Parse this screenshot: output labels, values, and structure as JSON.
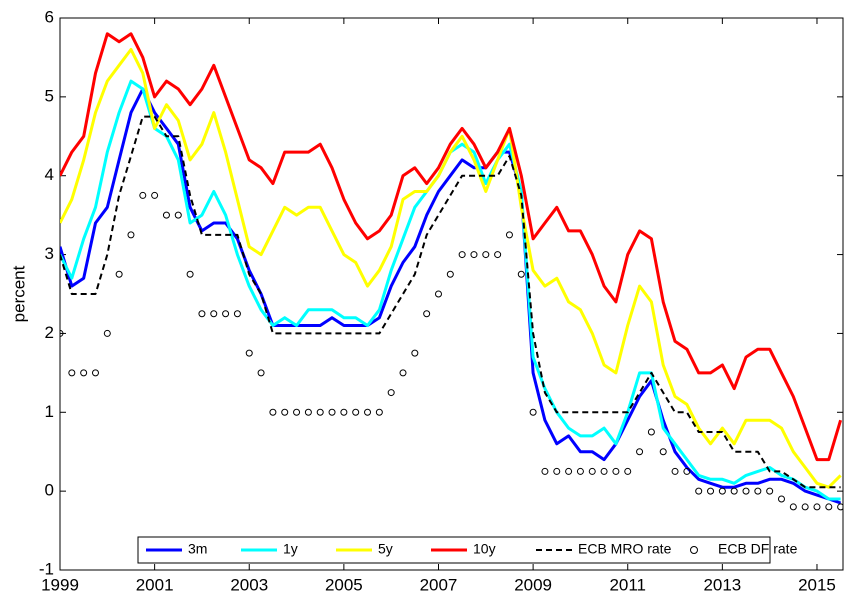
{
  "chart_data": {
    "type": "line",
    "ylabel": "percent",
    "x": [
      1999,
      1999.25,
      1999.5,
      1999.75,
      2000,
      2000.25,
      2000.5,
      2000.75,
      2001,
      2001.25,
      2001.5,
      2001.75,
      2002,
      2002.25,
      2002.5,
      2002.75,
      2003,
      2003.25,
      2003.5,
      2003.75,
      2004,
      2004.25,
      2004.5,
      2004.75,
      2005,
      2005.25,
      2005.5,
      2005.75,
      2006,
      2006.25,
      2006.5,
      2006.75,
      2007,
      2007.25,
      2007.5,
      2007.75,
      2008,
      2008.25,
      2008.5,
      2008.75,
      2009,
      2009.25,
      2009.5,
      2009.75,
      2010,
      2010.25,
      2010.5,
      2010.75,
      2011,
      2011.25,
      2011.5,
      2011.75,
      2012,
      2012.25,
      2012.5,
      2012.75,
      2013,
      2013.25,
      2013.5,
      2013.75,
      2014,
      2014.25,
      2014.5,
      2014.75,
      2015,
      2015.25,
      2015.5
    ],
    "series": [
      {
        "name": "3m",
        "color": "#0000ff",
        "line_style": "solid",
        "values": [
          3.1,
          2.6,
          2.7,
          3.4,
          3.6,
          4.2,
          4.8,
          5.1,
          4.8,
          4.6,
          4.4,
          3.6,
          3.3,
          3.4,
          3.4,
          3.2,
          2.8,
          2.5,
          2.1,
          2.1,
          2.1,
          2.1,
          2.1,
          2.2,
          2.1,
          2.1,
          2.1,
          2.2,
          2.6,
          2.9,
          3.1,
          3.5,
          3.8,
          4.0,
          4.2,
          4.1,
          4.1,
          4.3,
          4.3,
          3.8,
          1.5,
          0.9,
          0.6,
          0.7,
          0.5,
          0.5,
          0.4,
          0.6,
          0.9,
          1.2,
          1.4,
          0.9,
          0.5,
          0.3,
          0.15,
          0.1,
          0.05,
          0.05,
          0.1,
          0.1,
          0.15,
          0.15,
          0.1,
          0.0,
          -0.05,
          -0.1,
          -0.15
        ]
      },
      {
        "name": "1y",
        "color": "#00ffff",
        "line_style": "solid",
        "values": [
          3.0,
          2.7,
          3.2,
          3.6,
          4.3,
          4.8,
          5.2,
          5.1,
          4.6,
          4.5,
          4.2,
          3.4,
          3.5,
          3.8,
          3.5,
          3.0,
          2.6,
          2.3,
          2.1,
          2.2,
          2.1,
          2.3,
          2.3,
          2.3,
          2.2,
          2.2,
          2.1,
          2.3,
          2.8,
          3.2,
          3.6,
          3.8,
          4.0,
          4.3,
          4.4,
          4.3,
          3.9,
          4.2,
          4.4,
          3.8,
          1.7,
          1.3,
          1.0,
          0.8,
          0.7,
          0.7,
          0.8,
          0.6,
          1.0,
          1.5,
          1.5,
          0.8,
          0.6,
          0.4,
          0.2,
          0.15,
          0.15,
          0.1,
          0.2,
          0.25,
          0.3,
          0.2,
          0.15,
          0.05,
          0.0,
          -0.1,
          -0.1
        ]
      },
      {
        "name": "5y",
        "color": "#ffff00",
        "line_style": "solid",
        "values": [
          3.4,
          3.7,
          4.2,
          4.8,
          5.2,
          5.4,
          5.6,
          5.3,
          4.6,
          4.9,
          4.7,
          4.2,
          4.4,
          4.8,
          4.3,
          3.7,
          3.1,
          3.0,
          3.3,
          3.6,
          3.5,
          3.6,
          3.6,
          3.3,
          3.0,
          2.9,
          2.6,
          2.8,
          3.1,
          3.7,
          3.8,
          3.8,
          4.0,
          4.3,
          4.5,
          4.2,
          3.8,
          4.2,
          4.6,
          3.6,
          2.8,
          2.6,
          2.7,
          2.4,
          2.3,
          2.0,
          1.6,
          1.5,
          2.1,
          2.6,
          2.4,
          1.6,
          1.2,
          1.1,
          0.8,
          0.6,
          0.8,
          0.6,
          0.9,
          0.9,
          0.9,
          0.8,
          0.5,
          0.3,
          0.1,
          0.05,
          0.2
        ]
      },
      {
        "name": "10y",
        "color": "#ff0000",
        "line_style": "solid",
        "values": [
          4.0,
          4.3,
          4.5,
          5.3,
          5.8,
          5.7,
          5.8,
          5.5,
          5.0,
          5.2,
          5.1,
          4.9,
          5.1,
          5.4,
          5.0,
          4.6,
          4.2,
          4.1,
          3.9,
          4.3,
          4.3,
          4.3,
          4.4,
          4.1,
          3.7,
          3.4,
          3.2,
          3.3,
          3.5,
          4.0,
          4.1,
          3.9,
          4.1,
          4.4,
          4.6,
          4.4,
          4.1,
          4.3,
          4.6,
          4.0,
          3.2,
          3.4,
          3.6,
          3.3,
          3.3,
          3.0,
          2.6,
          2.4,
          3.0,
          3.3,
          3.2,
          2.4,
          1.9,
          1.8,
          1.5,
          1.5,
          1.6,
          1.3,
          1.7,
          1.8,
          1.8,
          1.5,
          1.2,
          0.8,
          0.4,
          0.4,
          0.9
        ]
      },
      {
        "name": "ECB MRO rate",
        "color": "#000000",
        "line_style": "dashed",
        "values": [
          3.0,
          2.5,
          2.5,
          2.5,
          3.0,
          3.75,
          4.25,
          4.75,
          4.75,
          4.5,
          4.5,
          3.75,
          3.25,
          3.25,
          3.25,
          3.25,
          2.75,
          2.5,
          2.0,
          2.0,
          2.0,
          2.0,
          2.0,
          2.0,
          2.0,
          2.0,
          2.0,
          2.0,
          2.25,
          2.5,
          2.75,
          3.25,
          3.5,
          3.75,
          4.0,
          4.0,
          4.0,
          4.0,
          4.25,
          3.75,
          2.0,
          1.25,
          1.0,
          1.0,
          1.0,
          1.0,
          1.0,
          1.0,
          1.0,
          1.25,
          1.5,
          1.25,
          1.0,
          1.0,
          0.75,
          0.75,
          0.75,
          0.5,
          0.5,
          0.5,
          0.25,
          0.25,
          0.15,
          0.05,
          0.05,
          0.05,
          0.05
        ]
      },
      {
        "name": "ECB DF rate",
        "color": "#000000",
        "line_style": "markers",
        "values": [
          2.0,
          1.5,
          1.5,
          1.5,
          2.0,
          2.75,
          3.25,
          3.75,
          3.75,
          3.5,
          3.5,
          2.75,
          2.25,
          2.25,
          2.25,
          2.25,
          1.75,
          1.5,
          1.0,
          1.0,
          1.0,
          1.0,
          1.0,
          1.0,
          1.0,
          1.0,
          1.0,
          1.0,
          1.25,
          1.5,
          1.75,
          2.25,
          2.5,
          2.75,
          3.0,
          3.0,
          3.0,
          3.0,
          3.25,
          2.75,
          1.0,
          0.25,
          0.25,
          0.25,
          0.25,
          0.25,
          0.25,
          0.25,
          0.25,
          0.5,
          0.75,
          0.5,
          0.25,
          0.25,
          0.0,
          0.0,
          0.0,
          0.0,
          0.0,
          0.0,
          0.0,
          -0.1,
          -0.2,
          -0.2,
          -0.2,
          -0.2,
          -0.2
        ]
      }
    ],
    "xlim": [
      1999,
      2015.55
    ],
    "xticks": [
      1999,
      2001,
      2003,
      2005,
      2007,
      2009,
      2011,
      2013,
      2015
    ],
    "ylim": [
      -1,
      6
    ],
    "yticks": [
      -1,
      0,
      1,
      2,
      3,
      4,
      5,
      6
    ],
    "legend": "bottom"
  }
}
